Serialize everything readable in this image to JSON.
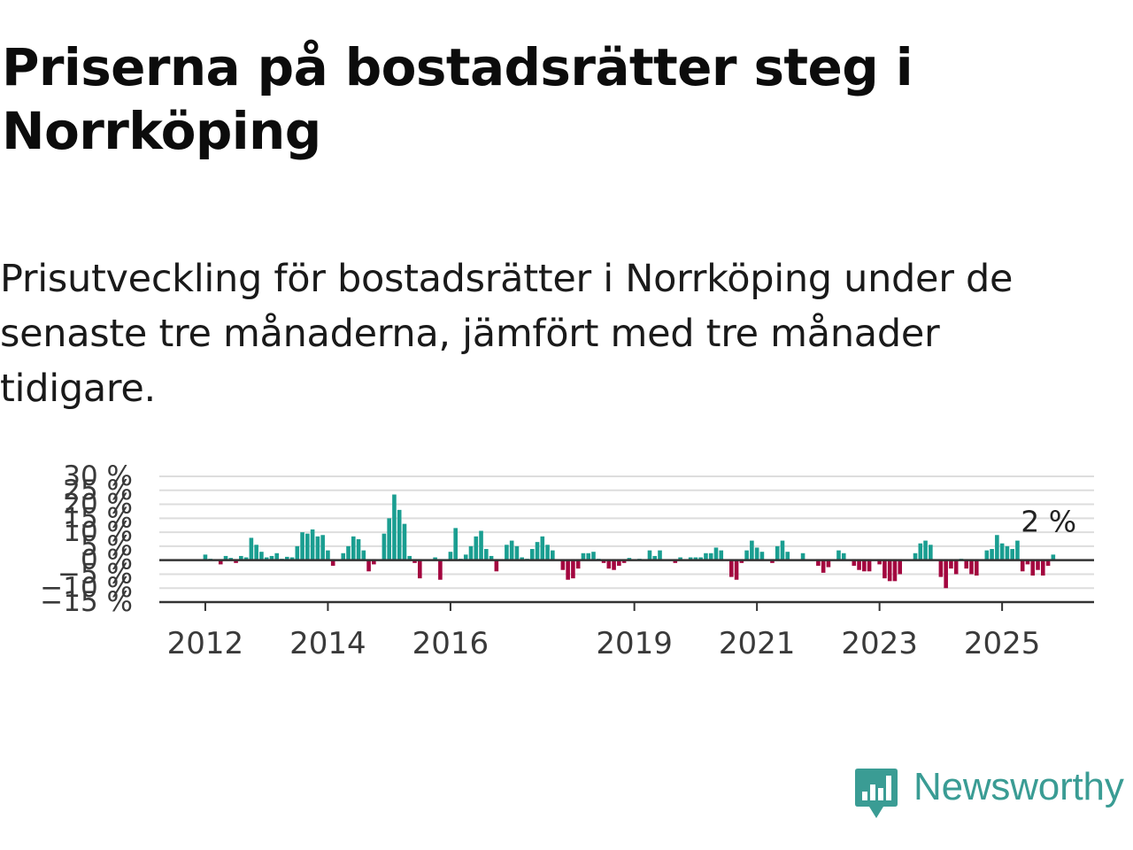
{
  "title": "Priserna på bostadsrätter steg i Norrköping",
  "subtitle": "Prisutveckling för bostadsrätter i Norrköping under de senaste tre månaderna, jämfört med tre månader tidigare.",
  "brand": {
    "name": "Newsworthy",
    "icon": "newsworthy-logo-icon",
    "color": "#3a9c94"
  },
  "colors": {
    "positive": "#1a9e91",
    "negative": "#a3063f",
    "grid": "#dddddd",
    "zero_line": "#333333",
    "axis": "#333333"
  },
  "chart_data": {
    "type": "bar",
    "x_axis": {
      "type": "date",
      "min": "2011-04",
      "max": "2026-07",
      "tick_labels": [
        "2012",
        "2014",
        "2016",
        "2019",
        "2021",
        "2023",
        "2025"
      ]
    },
    "y_axis": {
      "range": [
        -15,
        30
      ],
      "ticks": [
        -15,
        -10,
        -5,
        0,
        5,
        10,
        15,
        20,
        25,
        30
      ],
      "tick_labels": [
        "−15 %",
        "−10 %",
        "−5 %",
        "0 %",
        "5 %",
        "10 %",
        "15 %",
        "20 %",
        "25 %",
        "30 %"
      ]
    },
    "grid": true,
    "annotation": {
      "label": "2 %",
      "date": "2025-10",
      "value": 2
    },
    "positive_color": "#1a9e91",
    "negative_color": "#a3063f",
    "bars": [
      {
        "date": "2012-01",
        "value": 2
      },
      {
        "date": "2012-02",
        "value": 0.5
      },
      {
        "date": "2012-03",
        "value": 0.3
      },
      {
        "date": "2012-04",
        "value": -1.5
      },
      {
        "date": "2012-05",
        "value": 1.5
      },
      {
        "date": "2012-06",
        "value": 0.8
      },
      {
        "date": "2012-07",
        "value": -1
      },
      {
        "date": "2012-08",
        "value": 1.5
      },
      {
        "date": "2012-09",
        "value": 1
      },
      {
        "date": "2012-10",
        "value": 8
      },
      {
        "date": "2012-11",
        "value": 5.5
      },
      {
        "date": "2012-12",
        "value": 3
      },
      {
        "date": "2013-01",
        "value": 1
      },
      {
        "date": "2013-02",
        "value": 1.5
      },
      {
        "date": "2013-03",
        "value": 2.5
      },
      {
        "date": "2013-04",
        "value": 0.5
      },
      {
        "date": "2013-05",
        "value": 1.2
      },
      {
        "date": "2013-06",
        "value": 1
      },
      {
        "date": "2013-07",
        "value": 5
      },
      {
        "date": "2013-08",
        "value": 10
      },
      {
        "date": "2013-09",
        "value": 9.5
      },
      {
        "date": "2013-10",
        "value": 11
      },
      {
        "date": "2013-11",
        "value": 8.5
      },
      {
        "date": "2013-12",
        "value": 9
      },
      {
        "date": "2014-01",
        "value": 3.5
      },
      {
        "date": "2014-02",
        "value": -2
      },
      {
        "date": "2014-03",
        "value": 0.3
      },
      {
        "date": "2014-04",
        "value": 2.5
      },
      {
        "date": "2014-05",
        "value": 5
      },
      {
        "date": "2014-06",
        "value": 8.5
      },
      {
        "date": "2014-07",
        "value": 7.5
      },
      {
        "date": "2014-08",
        "value": 3.5
      },
      {
        "date": "2014-09",
        "value": -4
      },
      {
        "date": "2014-10",
        "value": -1.5
      },
      {
        "date": "2014-11",
        "value": 0.3
      },
      {
        "date": "2014-12",
        "value": 9.5
      },
      {
        "date": "2015-01",
        "value": 15
      },
      {
        "date": "2015-02",
        "value": 23.5
      },
      {
        "date": "2015-03",
        "value": 18
      },
      {
        "date": "2015-04",
        "value": 13
      },
      {
        "date": "2015-05",
        "value": 1.5
      },
      {
        "date": "2015-06",
        "value": -1
      },
      {
        "date": "2015-07",
        "value": -6.5
      },
      {
        "date": "2015-08",
        "value": 0.3
      },
      {
        "date": "2015-09",
        "value": 0.2
      },
      {
        "date": "2015-10",
        "value": 1
      },
      {
        "date": "2015-11",
        "value": -7
      },
      {
        "date": "2015-12",
        "value": 0.3
      },
      {
        "date": "2016-01",
        "value": 3
      },
      {
        "date": "2016-02",
        "value": 11.5
      },
      {
        "date": "2016-03",
        "value": 0.5
      },
      {
        "date": "2016-04",
        "value": 2
      },
      {
        "date": "2016-05",
        "value": 5
      },
      {
        "date": "2016-06",
        "value": 8.5
      },
      {
        "date": "2016-07",
        "value": 10.5
      },
      {
        "date": "2016-08",
        "value": 4
      },
      {
        "date": "2016-09",
        "value": 1.5
      },
      {
        "date": "2016-10",
        "value": -4
      },
      {
        "date": "2016-11",
        "value": 0.3
      },
      {
        "date": "2016-12",
        "value": 5.5
      },
      {
        "date": "2017-01",
        "value": 7
      },
      {
        "date": "2017-02",
        "value": 5
      },
      {
        "date": "2017-03",
        "value": 1
      },
      {
        "date": "2017-04",
        "value": 0.5
      },
      {
        "date": "2017-05",
        "value": 4
      },
      {
        "date": "2017-06",
        "value": 6.5
      },
      {
        "date": "2017-07",
        "value": 8.5
      },
      {
        "date": "2017-08",
        "value": 5.5
      },
      {
        "date": "2017-09",
        "value": 3.5
      },
      {
        "date": "2017-10",
        "value": 0.3
      },
      {
        "date": "2017-11",
        "value": -3.5
      },
      {
        "date": "2017-12",
        "value": -7
      },
      {
        "date": "2018-01",
        "value": -6.5
      },
      {
        "date": "2018-02",
        "value": -3
      },
      {
        "date": "2018-03",
        "value": 2.5
      },
      {
        "date": "2018-04",
        "value": 2.5
      },
      {
        "date": "2018-05",
        "value": 3
      },
      {
        "date": "2018-06",
        "value": 0.5
      },
      {
        "date": "2018-07",
        "value": -1
      },
      {
        "date": "2018-08",
        "value": -3
      },
      {
        "date": "2018-09",
        "value": -3.5
      },
      {
        "date": "2018-10",
        "value": -2
      },
      {
        "date": "2018-11",
        "value": -1
      },
      {
        "date": "2018-12",
        "value": 0.8
      },
      {
        "date": "2019-01",
        "value": 0.3
      },
      {
        "date": "2019-02",
        "value": 0.5
      },
      {
        "date": "2019-03",
        "value": 0.3
      },
      {
        "date": "2019-04",
        "value": 3.5
      },
      {
        "date": "2019-05",
        "value": 1.5
      },
      {
        "date": "2019-06",
        "value": 3.5
      },
      {
        "date": "2019-07",
        "value": 0.3
      },
      {
        "date": "2019-08",
        "value": 0.2
      },
      {
        "date": "2019-09",
        "value": -1
      },
      {
        "date": "2019-10",
        "value": 1
      },
      {
        "date": "2019-11",
        "value": 0.3
      },
      {
        "date": "2019-12",
        "value": 1
      },
      {
        "date": "2020-01",
        "value": 1
      },
      {
        "date": "2020-02",
        "value": 1
      },
      {
        "date": "2020-03",
        "value": 2.5
      },
      {
        "date": "2020-04",
        "value": 2.5
      },
      {
        "date": "2020-05",
        "value": 4.5
      },
      {
        "date": "2020-06",
        "value": 3.5
      },
      {
        "date": "2020-07",
        "value": 0.3
      },
      {
        "date": "2020-08",
        "value": -6
      },
      {
        "date": "2020-09",
        "value": -7
      },
      {
        "date": "2020-10",
        "value": -1
      },
      {
        "date": "2020-11",
        "value": 3.5
      },
      {
        "date": "2020-12",
        "value": 7
      },
      {
        "date": "2021-01",
        "value": 4.5
      },
      {
        "date": "2021-02",
        "value": 3
      },
      {
        "date": "2021-03",
        "value": 0.3
      },
      {
        "date": "2021-04",
        "value": -1
      },
      {
        "date": "2021-05",
        "value": 5
      },
      {
        "date": "2021-06",
        "value": 7
      },
      {
        "date": "2021-07",
        "value": 3
      },
      {
        "date": "2021-08",
        "value": 0.3
      },
      {
        "date": "2021-09",
        "value": 0.3
      },
      {
        "date": "2021-10",
        "value": 2.5
      },
      {
        "date": "2021-11",
        "value": 0.3
      },
      {
        "date": "2021-12",
        "value": 0.3
      },
      {
        "date": "2022-01",
        "value": -2
      },
      {
        "date": "2022-02",
        "value": -4.5
      },
      {
        "date": "2022-03",
        "value": -2.5
      },
      {
        "date": "2022-04",
        "value": 0.3
      },
      {
        "date": "2022-05",
        "value": 3.5
      },
      {
        "date": "2022-06",
        "value": 2.5
      },
      {
        "date": "2022-07",
        "value": 0.3
      },
      {
        "date": "2022-08",
        "value": -2
      },
      {
        "date": "2022-09",
        "value": -3.5
      },
      {
        "date": "2022-10",
        "value": -4
      },
      {
        "date": "2022-11",
        "value": -4
      },
      {
        "date": "2022-12",
        "value": 0.3
      },
      {
        "date": "2023-01",
        "value": -1.5
      },
      {
        "date": "2023-02",
        "value": -6.5
      },
      {
        "date": "2023-03",
        "value": -7.5
      },
      {
        "date": "2023-04",
        "value": -7.5
      },
      {
        "date": "2023-05",
        "value": -5
      },
      {
        "date": "2023-06",
        "value": 0.3
      },
      {
        "date": "2023-07",
        "value": 0.3
      },
      {
        "date": "2023-08",
        "value": 2.5
      },
      {
        "date": "2023-09",
        "value": 6
      },
      {
        "date": "2023-10",
        "value": 7
      },
      {
        "date": "2023-11",
        "value": 5.5
      },
      {
        "date": "2023-12",
        "value": 0.3
      },
      {
        "date": "2024-01",
        "value": -6
      },
      {
        "date": "2024-02",
        "value": -10
      },
      {
        "date": "2024-03",
        "value": -3
      },
      {
        "date": "2024-04",
        "value": -5
      },
      {
        "date": "2024-05",
        "value": 0.5
      },
      {
        "date": "2024-06",
        "value": -3
      },
      {
        "date": "2024-07",
        "value": -5
      },
      {
        "date": "2024-08",
        "value": -5.5
      },
      {
        "date": "2024-09",
        "value": 0.3
      },
      {
        "date": "2024-10",
        "value": 3.5
      },
      {
        "date": "2024-11",
        "value": 4
      },
      {
        "date": "2024-12",
        "value": 9
      },
      {
        "date": "2025-01",
        "value": 6
      },
      {
        "date": "2025-02",
        "value": 5
      },
      {
        "date": "2025-03",
        "value": 4
      },
      {
        "date": "2025-04",
        "value": 7
      },
      {
        "date": "2025-05",
        "value": -4
      },
      {
        "date": "2025-06",
        "value": -1.5
      },
      {
        "date": "2025-07",
        "value": -5.5
      },
      {
        "date": "2025-08",
        "value": -3.5
      },
      {
        "date": "2025-09",
        "value": -5.5
      },
      {
        "date": "2025-10",
        "value": -2
      },
      {
        "date": "2025-11",
        "value": 2
      }
    ]
  }
}
